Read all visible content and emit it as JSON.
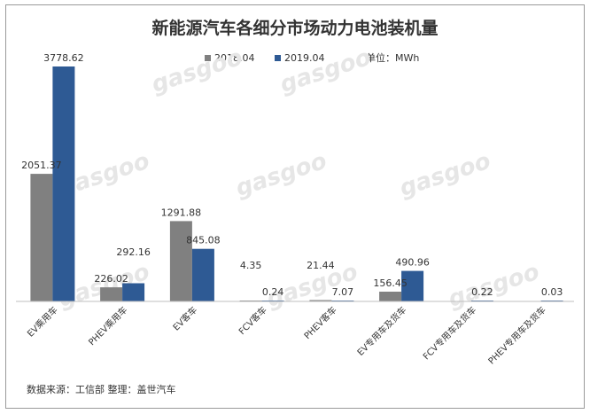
{
  "chart_data": {
    "type": "bar",
    "title": "新能源汽车各细分市场动力电池装机量",
    "unit": "单位：MWh",
    "categories": [
      "EV乘用车",
      "PHEV乘用车",
      "EV客车",
      "FCV客车",
      "PHEV客车",
      "EV专用车及货车",
      "FCV专用车及货车",
      "PHEV专用车及货车"
    ],
    "series": [
      {
        "name": "2018.04",
        "color": "#808080",
        "values": [
          2051.37,
          226.02,
          1291.88,
          4.35,
          21.44,
          156.45,
          null,
          null
        ]
      },
      {
        "name": "2019.04",
        "color": "#2e5a94",
        "values": [
          3778.62,
          292.16,
          845.08,
          0.24,
          7.07,
          490.96,
          0.22,
          0.03
        ]
      }
    ],
    "data_labels": [
      [
        "2051.37",
        "226.02",
        "1291.88",
        "4.35",
        "21.44",
        "156.45",
        "",
        ""
      ],
      [
        "3778.62",
        "292.16",
        "845.08",
        "0.24",
        "7.07",
        "490.96",
        "0.22",
        "0.03"
      ]
    ],
    "ylim": [
      0,
      3950
    ],
    "grid": false,
    "legend_position": "top"
  },
  "source_note": "数据来源：工信部   整理：盖世汽车",
  "watermark": "gasgoo"
}
